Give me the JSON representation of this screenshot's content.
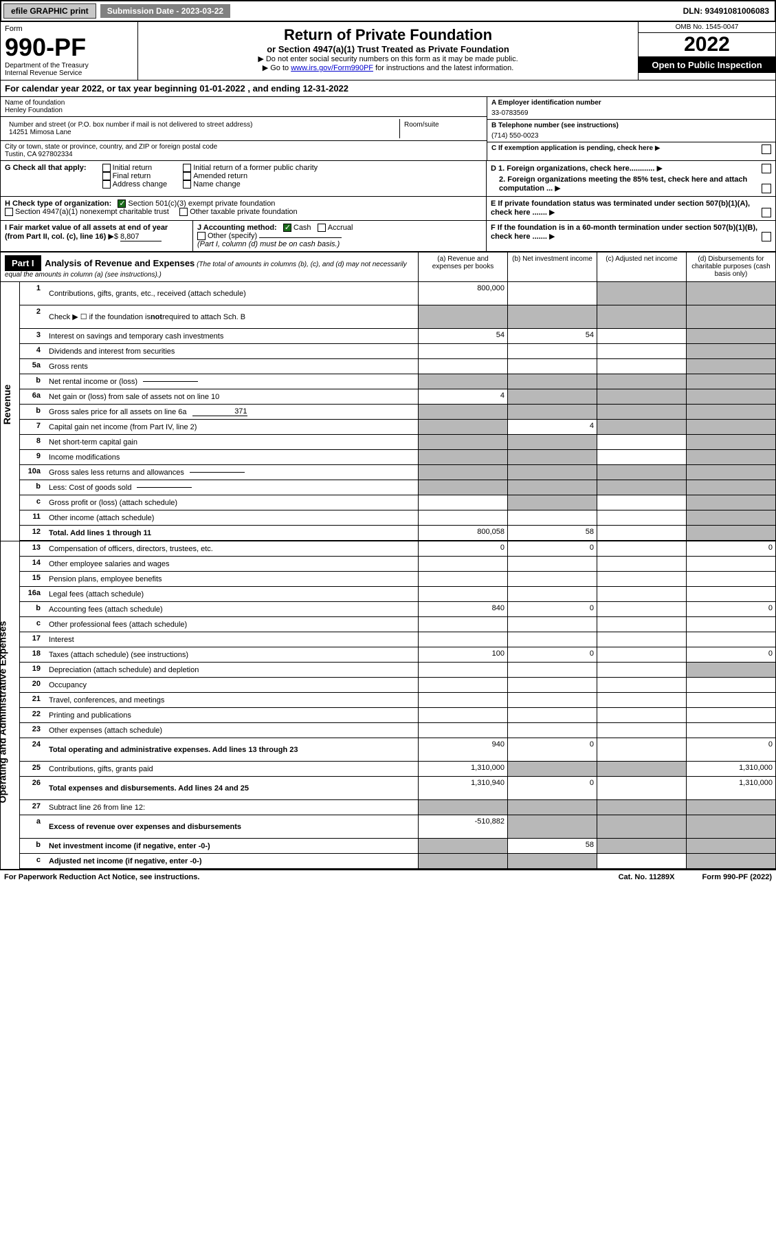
{
  "topbar": {
    "efile": "efile GRAPHIC print",
    "submission_label": "Submission Date - 2023-03-22",
    "dln": "DLN: 93491081006083"
  },
  "header": {
    "form_label": "Form",
    "form_number": "990-PF",
    "dept": "Department of the Treasury",
    "irs": "Internal Revenue Service",
    "title": "Return of Private Foundation",
    "subtitle": "or Section 4947(a)(1) Trust Treated as Private Foundation",
    "instr1": "▶ Do not enter social security numbers on this form as it may be made public.",
    "instr2_pre": "▶ Go to ",
    "instr2_link": "www.irs.gov/Form990PF",
    "instr2_post": " for instructions and the latest information.",
    "omb": "OMB No. 1545-0047",
    "year": "2022",
    "open": "Open to Public Inspection"
  },
  "calyear": {
    "text_pre": "For calendar year 2022, or tax year beginning ",
    "begin": "01-01-2022",
    "text_mid": " , and ending ",
    "end": "12-31-2022"
  },
  "info": {
    "name_label": "Name of foundation",
    "name": "Henley Foundation",
    "addr_label": "Number and street (or P.O. box number if mail is not delivered to street address)",
    "addr": "14251 Mimosa Lane",
    "room_label": "Room/suite",
    "room": "",
    "city_label": "City or town, state or province, country, and ZIP or foreign postal code",
    "city": "Tustin, CA  927802334",
    "a_label": "A Employer identification number",
    "a_val": "33-0783569",
    "b_label": "B Telephone number (see instructions)",
    "b_val": "(714) 550-0023",
    "c_label": "C If exemption application is pending, check here"
  },
  "g": {
    "label": "G Check all that apply:",
    "opts": [
      "Initial return",
      "Final return",
      "Address change",
      "Initial return of a former public charity",
      "Amended return",
      "Name change"
    ]
  },
  "d": {
    "d1": "D 1. Foreign organizations, check here............",
    "d2": "2. Foreign organizations meeting the 85% test, check here and attach computation ..."
  },
  "h": {
    "label": "H Check type of organization:",
    "opt1": "Section 501(c)(3) exempt private foundation",
    "opt2": "Section 4947(a)(1) nonexempt charitable trust",
    "opt3": "Other taxable private foundation"
  },
  "e": {
    "label": "E  If private foundation status was terminated under section 507(b)(1)(A), check here ......."
  },
  "i": {
    "label": "I Fair market value of all assets at end of year (from Part II, col. (c), line 16)",
    "val": "8,807"
  },
  "j": {
    "label": "J Accounting method:",
    "cash": "Cash",
    "accrual": "Accrual",
    "other": "Other (specify)",
    "note": "(Part I, column (d) must be on cash basis.)"
  },
  "f": {
    "label": "F  If the foundation is in a 60-month termination under section 507(b)(1)(B), check here ......."
  },
  "part1": {
    "title": "Part I",
    "heading": "Analysis of Revenue and Expenses",
    "note": "(The total of amounts in columns (b), (c), and (d) may not necessarily equal the amounts in column (a) (see instructions).)",
    "col_a": "(a)   Revenue and expenses per books",
    "col_b": "(b)   Net investment income",
    "col_c": "(c)   Adjusted net income",
    "col_d": "(d)   Disbursements for charitable purposes (cash basis only)"
  },
  "side": {
    "revenue": "Revenue",
    "expenses": "Operating and Administrative Expenses"
  },
  "rows": [
    {
      "n": "1",
      "label": "Contributions, gifts, grants, etc., received (attach schedule)",
      "a": "800,000",
      "b": "",
      "c": "s",
      "d": "s",
      "tall": true
    },
    {
      "n": "2",
      "label_html": "Check ▶ ☐ if the foundation is <b>not</b> required to attach Sch. B",
      "a": "s",
      "b": "s",
      "c": "s",
      "d": "s",
      "tall": true
    },
    {
      "n": "3",
      "label": "Interest on savings and temporary cash investments",
      "a": "54",
      "b": "54",
      "c": "",
      "d": "s"
    },
    {
      "n": "4",
      "label": "Dividends and interest from securities",
      "a": "",
      "b": "",
      "c": "",
      "d": "s"
    },
    {
      "n": "5a",
      "label": "Gross rents",
      "a": "",
      "b": "",
      "c": "",
      "d": "s"
    },
    {
      "n": "b",
      "label": "Net rental income or (loss)",
      "a": "s",
      "b": "s",
      "c": "s",
      "d": "s",
      "inline": ""
    },
    {
      "n": "6a",
      "label": "Net gain or (loss) from sale of assets not on line 10",
      "a": "4",
      "b": "s",
      "c": "s",
      "d": "s"
    },
    {
      "n": "b",
      "label": "Gross sales price for all assets on line 6a",
      "a": "s",
      "b": "s",
      "c": "s",
      "d": "s",
      "inline": "371"
    },
    {
      "n": "7",
      "label": "Capital gain net income (from Part IV, line 2)",
      "a": "s",
      "b": "4",
      "c": "s",
      "d": "s"
    },
    {
      "n": "8",
      "label": "Net short-term capital gain",
      "a": "s",
      "b": "s",
      "c": "",
      "d": "s"
    },
    {
      "n": "9",
      "label": "Income modifications",
      "a": "s",
      "b": "s",
      "c": "",
      "d": "s"
    },
    {
      "n": "10a",
      "label": "Gross sales less returns and allowances",
      "a": "s",
      "b": "s",
      "c": "s",
      "d": "s",
      "inline": ""
    },
    {
      "n": "b",
      "label": "Less: Cost of goods sold",
      "a": "s",
      "b": "s",
      "c": "s",
      "d": "s",
      "inline": ""
    },
    {
      "n": "c",
      "label": "Gross profit or (loss) (attach schedule)",
      "a": "",
      "b": "s",
      "c": "",
      "d": "s"
    },
    {
      "n": "11",
      "label": "Other income (attach schedule)",
      "a": "",
      "b": "",
      "c": "",
      "d": "s"
    },
    {
      "n": "12",
      "label": "Total. Add lines 1 through 11",
      "a": "800,058",
      "b": "58",
      "c": "",
      "d": "s",
      "bold": true
    }
  ],
  "exp_rows": [
    {
      "n": "13",
      "label": "Compensation of officers, directors, trustees, etc.",
      "a": "0",
      "b": "0",
      "c": "",
      "d": "0"
    },
    {
      "n": "14",
      "label": "Other employee salaries and wages",
      "a": "",
      "b": "",
      "c": "",
      "d": ""
    },
    {
      "n": "15",
      "label": "Pension plans, employee benefits",
      "a": "",
      "b": "",
      "c": "",
      "d": ""
    },
    {
      "n": "16a",
      "label": "Legal fees (attach schedule)",
      "a": "",
      "b": "",
      "c": "",
      "d": ""
    },
    {
      "n": "b",
      "label": "Accounting fees (attach schedule)",
      "a": "840",
      "b": "0",
      "c": "",
      "d": "0"
    },
    {
      "n": "c",
      "label": "Other professional fees (attach schedule)",
      "a": "",
      "b": "",
      "c": "",
      "d": ""
    },
    {
      "n": "17",
      "label": "Interest",
      "a": "",
      "b": "",
      "c": "",
      "d": ""
    },
    {
      "n": "18",
      "label": "Taxes (attach schedule) (see instructions)",
      "a": "100",
      "b": "0",
      "c": "",
      "d": "0"
    },
    {
      "n": "19",
      "label": "Depreciation (attach schedule) and depletion",
      "a": "",
      "b": "",
      "c": "",
      "d": "s"
    },
    {
      "n": "20",
      "label": "Occupancy",
      "a": "",
      "b": "",
      "c": "",
      "d": ""
    },
    {
      "n": "21",
      "label": "Travel, conferences, and meetings",
      "a": "",
      "b": "",
      "c": "",
      "d": ""
    },
    {
      "n": "22",
      "label": "Printing and publications",
      "a": "",
      "b": "",
      "c": "",
      "d": ""
    },
    {
      "n": "23",
      "label": "Other expenses (attach schedule)",
      "a": "",
      "b": "",
      "c": "",
      "d": ""
    },
    {
      "n": "24",
      "label": "Total operating and administrative expenses. Add lines 13 through 23",
      "a": "940",
      "b": "0",
      "c": "",
      "d": "0",
      "bold": true,
      "tall": true
    },
    {
      "n": "25",
      "label": "Contributions, gifts, grants paid",
      "a": "1,310,000",
      "b": "s",
      "c": "s",
      "d": "1,310,000"
    },
    {
      "n": "26",
      "label": "Total expenses and disbursements. Add lines 24 and 25",
      "a": "1,310,940",
      "b": "0",
      "c": "",
      "d": "1,310,000",
      "bold": true,
      "tall": true
    },
    {
      "n": "27",
      "label": "Subtract line 26 from line 12:",
      "a": "s",
      "b": "s",
      "c": "s",
      "d": "s"
    },
    {
      "n": "a",
      "label": "Excess of revenue over expenses and disbursements",
      "a": "-510,882",
      "b": "s",
      "c": "s",
      "d": "s",
      "bold": true,
      "tall": true
    },
    {
      "n": "b",
      "label": "Net investment income (if negative, enter -0-)",
      "a": "s",
      "b": "58",
      "c": "s",
      "d": "s",
      "bold": true
    },
    {
      "n": "c",
      "label": "Adjusted net income (if negative, enter -0-)",
      "a": "s",
      "b": "s",
      "c": "",
      "d": "s",
      "bold": true
    }
  ],
  "footer": {
    "left": "For Paperwork Reduction Act Notice, see instructions.",
    "mid": "Cat. No. 11289X",
    "right": "Form 990-PF (2022)"
  }
}
